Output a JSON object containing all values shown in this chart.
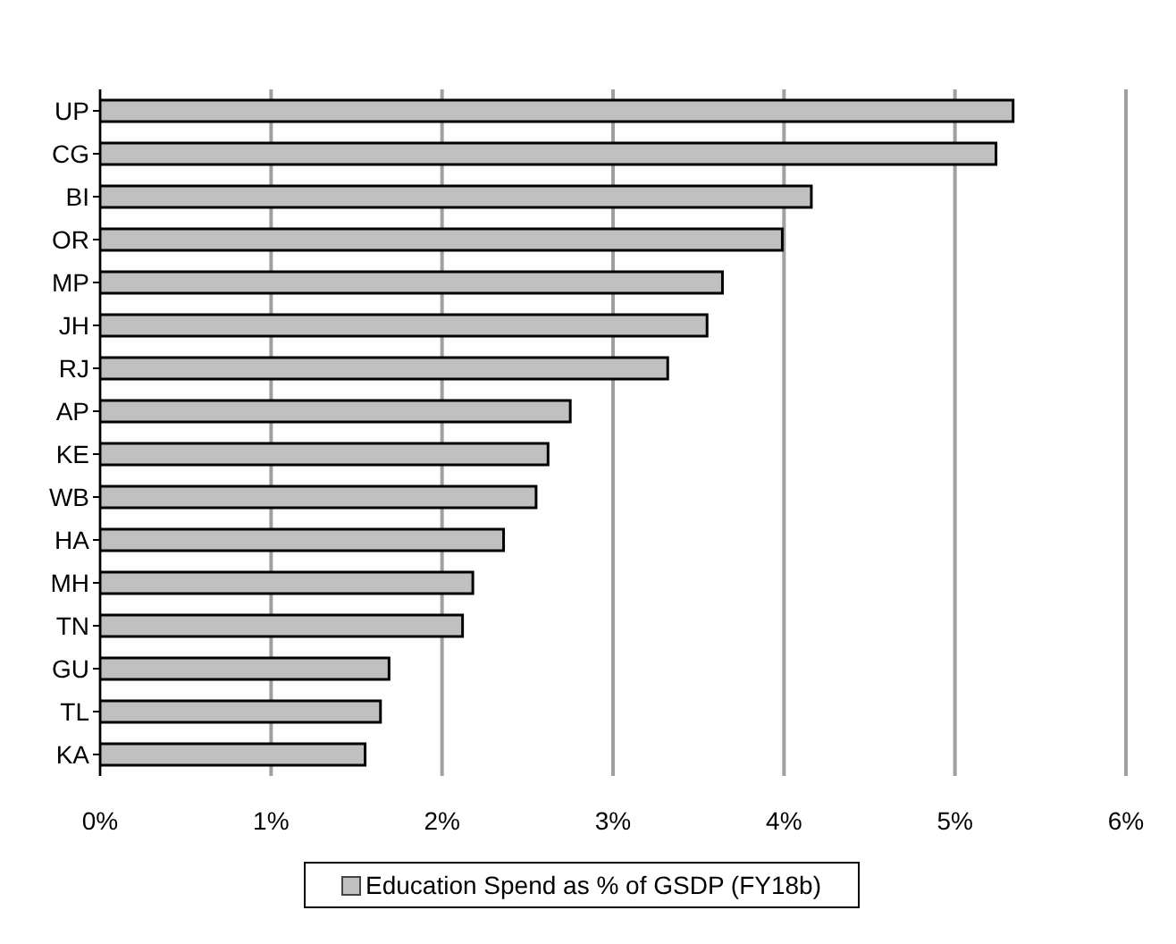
{
  "chart_data": {
    "type": "bar",
    "orientation": "horizontal",
    "categories": [
      "UP",
      "CG",
      "BI",
      "OR",
      "MP",
      "JH",
      "RJ",
      "AP",
      "KE",
      "WB",
      "HA",
      "MH",
      "TN",
      "GU",
      "TL",
      "KA"
    ],
    "series": [
      {
        "name": "Education Spend as % of GSDP (FY18b)",
        "color": "#c0c0c0",
        "values": [
          5.34,
          5.24,
          4.16,
          3.99,
          3.64,
          3.55,
          3.32,
          2.75,
          2.62,
          2.55,
          2.36,
          2.18,
          2.12,
          1.69,
          1.64,
          1.55
        ]
      }
    ],
    "xlim": [
      0,
      6
    ],
    "xticks": [
      {
        "value": 0,
        "label": "0%"
      },
      {
        "value": 1,
        "label": "1%"
      },
      {
        "value": 2,
        "label": "2%"
      },
      {
        "value": 3,
        "label": "3%"
      },
      {
        "value": 4,
        "label": "4%"
      },
      {
        "value": 5,
        "label": "5%"
      },
      {
        "value": 6,
        "label": "6%"
      }
    ],
    "grid": "x",
    "legend": "bottom"
  }
}
